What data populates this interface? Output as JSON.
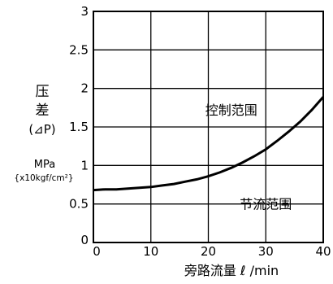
{
  "chart_data": {
    "type": "line",
    "title": "",
    "xlabel": "旁路流量 ℓ /min",
    "ylabel": {
      "line1": "压",
      "line2": "差",
      "line3": "(⊿P)",
      "unit": "MPa",
      "unit_alt": "{x10kgf/cm²}"
    },
    "xlim": [
      0,
      40
    ],
    "ylim": [
      0,
      3
    ],
    "x_ticks": [
      "0",
      "10",
      "20",
      "30",
      "40"
    ],
    "y_ticks": [
      "0",
      "0.5",
      "1",
      "1.5",
      "2",
      "2.5",
      "3"
    ],
    "grid": true,
    "series": [
      {
        "x": [
          0,
          2,
          4,
          6,
          8,
          10,
          12,
          14,
          16,
          18,
          20,
          22,
          24,
          26,
          28,
          30,
          32,
          34,
          36,
          38,
          40
        ],
        "y": [
          0.68,
          0.69,
          0.69,
          0.7,
          0.71,
          0.72,
          0.74,
          0.76,
          0.79,
          0.82,
          0.86,
          0.91,
          0.97,
          1.04,
          1.12,
          1.21,
          1.32,
          1.44,
          1.57,
          1.72,
          1.89
        ]
      }
    ],
    "annotations": [
      {
        "text": "控制范围",
        "x": 24,
        "y": 1.72
      },
      {
        "text": "节流范围",
        "x": 30,
        "y": 0.5
      }
    ]
  }
}
